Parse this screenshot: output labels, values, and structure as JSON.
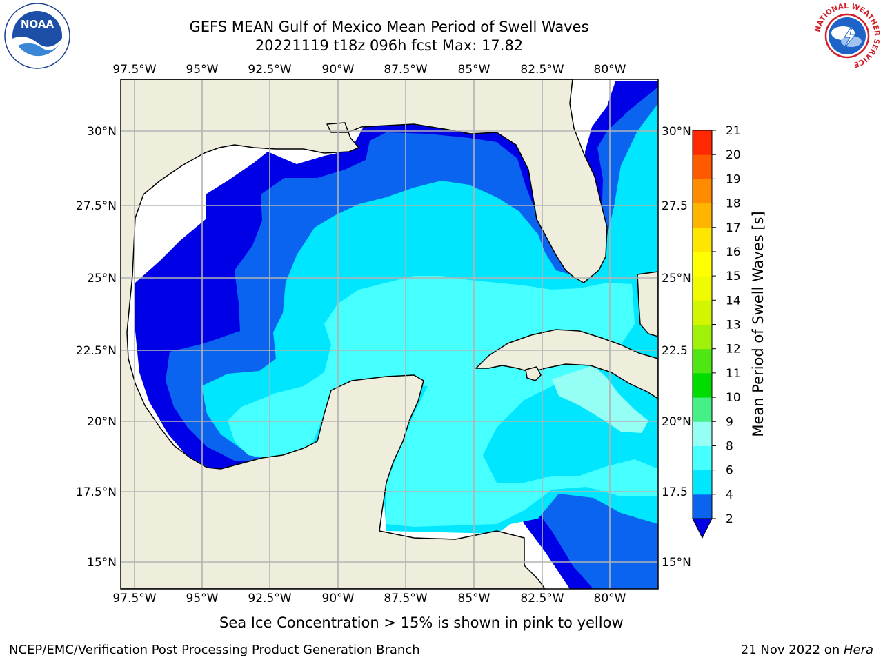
{
  "header": {
    "title_line1": "GEFS MEAN Gulf of Mexico Mean Period of Swell Waves",
    "title_line2": "20221119 t18z 096h fcst   Max: 17.82"
  },
  "logos": {
    "left": {
      "icon": "noaa-logo-icon",
      "text": "NOAA"
    },
    "right": {
      "icon": "nws-logo-icon",
      "ring_text": "NATIONAL WEATHER SERVICE"
    }
  },
  "map": {
    "lon_labels": [
      "97.5°W",
      "95°W",
      "92.5°W",
      "90°W",
      "87.5°W",
      "85°W",
      "82.5°W",
      "80°W"
    ],
    "lat_labels": [
      "30°N",
      "27.5°N",
      "25°N",
      "22.5°N",
      "20°N",
      "17.5°N",
      "15°N"
    ],
    "lat_labels_right": [
      "30°N",
      "27.5",
      "25°N",
      "22.5",
      "20°N",
      "17.5",
      "15°N"
    ],
    "lon_range": [
      -98,
      -78
    ],
    "lat_range": [
      14,
      32
    ],
    "colors": {
      "land": "#efeedc",
      "coast": "#000000",
      "grid": "#b3b3b3"
    }
  },
  "colorbar": {
    "label": "Mean Period of Swell Waves [s]",
    "ticks": [
      "2",
      "4",
      "6",
      "8",
      "9",
      "10",
      "11",
      "12",
      "13",
      "14",
      "15",
      "16",
      "17",
      "18",
      "19",
      "20",
      "21"
    ],
    "colors": [
      "#0a64f0",
      "#00e6ff",
      "#46ffff",
      "#96fff5",
      "#46f086",
      "#00dc00",
      "#50e614",
      "#a0f00a",
      "#d2f500",
      "#f0fa00",
      "#ffff00",
      "#ffe600",
      "#ffb400",
      "#ff8c00",
      "#ff5a00",
      "#ff2800"
    ],
    "extend_color": "#0000e6"
  },
  "footer": {
    "note": "Sea Ice Concentration > 15% is shown in pink to yellow",
    "credit": "NCEP/EMC/Verification Post Processing Product Generation Branch",
    "date": "21 Nov 2022 on ",
    "machine": "Hera"
  }
}
